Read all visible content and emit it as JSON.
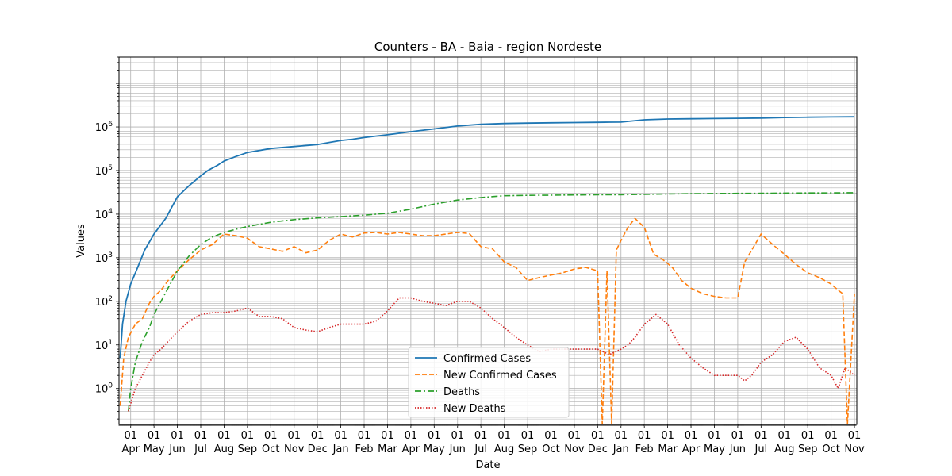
{
  "chart_data": {
    "type": "line",
    "title": "Counters - BA - Baia - region Nordeste",
    "xlabel": "Date",
    "ylabel": "Values",
    "yscale": "log",
    "ylim": [
      0.15,
      40000000
    ],
    "grid": true,
    "legend_position": "bottom-center",
    "x_ticks": [
      {
        "day": "01",
        "month": "Apr"
      },
      {
        "day": "01",
        "month": "May"
      },
      {
        "day": "01",
        "month": "Jun"
      },
      {
        "day": "01",
        "month": "Jul"
      },
      {
        "day": "01",
        "month": "Aug"
      },
      {
        "day": "01",
        "month": "Sep"
      },
      {
        "day": "01",
        "month": "Oct"
      },
      {
        "day": "01",
        "month": "Nov"
      },
      {
        "day": "01",
        "month": "Dec"
      },
      {
        "day": "01",
        "month": "Jan"
      },
      {
        "day": "01",
        "month": "Feb"
      },
      {
        "day": "01",
        "month": "Mar"
      },
      {
        "day": "01",
        "month": "Apr"
      },
      {
        "day": "01",
        "month": "May"
      },
      {
        "day": "01",
        "month": "Jun"
      },
      {
        "day": "01",
        "month": "Jul"
      },
      {
        "day": "01",
        "month": "Aug"
      },
      {
        "day": "01",
        "month": "Sep"
      },
      {
        "day": "01",
        "month": "Oct"
      },
      {
        "day": "01",
        "month": "Nov"
      },
      {
        "day": "01",
        "month": "Dec"
      },
      {
        "day": "01",
        "month": "Jan"
      },
      {
        "day": "01",
        "month": "Feb"
      },
      {
        "day": "01",
        "month": "Mar"
      },
      {
        "day": "01",
        "month": "Apr"
      },
      {
        "day": "01",
        "month": "May"
      },
      {
        "day": "01",
        "month": "Jun"
      },
      {
        "day": "01",
        "month": "Jul"
      },
      {
        "day": "01",
        "month": "Aug"
      },
      {
        "day": "01",
        "month": "Sep"
      },
      {
        "day": "01",
        "month": "Oct"
      },
      {
        "day": "01",
        "month": "Nov"
      }
    ],
    "y_ticks": [
      {
        "base": "10",
        "exp": "0",
        "value": 1
      },
      {
        "base": "10",
        "exp": "1",
        "value": 10
      },
      {
        "base": "10",
        "exp": "2",
        "value": 100
      },
      {
        "base": "10",
        "exp": "3",
        "value": 1000
      },
      {
        "base": "10",
        "exp": "4",
        "value": 10000
      },
      {
        "base": "10",
        "exp": "5",
        "value": 100000
      },
      {
        "base": "10",
        "exp": "6",
        "value": 1000000
      }
    ],
    "x_range_months": [
      -0.5,
      31.1
    ],
    "series": [
      {
        "name": "Confirmed Cases",
        "color": "#1f77b4",
        "style": "solid",
        "x": [
          -0.45,
          -0.35,
          -0.2,
          0,
          0.3,
          0.6,
          1,
          1.5,
          2,
          2.5,
          3,
          3.3,
          3.7,
          4,
          4.5,
          5,
          6,
          7,
          8,
          8.5,
          9,
          9.5,
          10,
          11,
          12,
          13,
          14,
          15,
          16,
          17,
          18,
          19,
          20,
          20.5,
          21,
          22,
          23,
          24,
          25,
          26,
          27,
          28,
          29,
          30,
          31
        ],
        "y": [
          5,
          30,
          100,
          250,
          600,
          1500,
          3500,
          8000,
          25000,
          45000,
          75000,
          100000,
          130000,
          165000,
          210000,
          260000,
          320000,
          355000,
          395000,
          440000,
          490000,
          520000,
          570000,
          660000,
          780000,
          900000,
          1050000,
          1150000,
          1200000,
          1225000,
          1245000,
          1260000,
          1275000,
          1290000,
          1295000,
          1460000,
          1520000,
          1540000,
          1560000,
          1580000,
          1600000,
          1650000,
          1675000,
          1695000,
          1710000
        ]
      },
      {
        "name": "New Confirmed Cases",
        "color": "#ff7f0e",
        "style": "dashed",
        "x": [
          -0.45,
          -0.3,
          -0.1,
          0.2,
          0.5,
          0.8,
          1,
          1.3,
          1.6,
          2,
          2.5,
          3,
          3.5,
          4,
          4.5,
          5,
          5.5,
          6,
          6.5,
          7,
          7.5,
          8,
          8.5,
          9,
          9.5,
          10,
          10.5,
          11,
          11.5,
          12,
          12.5,
          13,
          13.5,
          14,
          14.5,
          15,
          15.5,
          16,
          16.5,
          17,
          17.5,
          18,
          18.5,
          19,
          19.5,
          20,
          20.2,
          20.4,
          20.6,
          20.8,
          21,
          21.3,
          21.6,
          22,
          22.4,
          22.8,
          23.2,
          23.6,
          24,
          24.5,
          25,
          25.5,
          26,
          26.3,
          26.6,
          27,
          27.5,
          28,
          28.5,
          29,
          29.5,
          30,
          30.3,
          30.5,
          30.7,
          31
        ],
        "y": [
          0.4,
          5,
          15,
          30,
          40,
          90,
          130,
          180,
          300,
          500,
          900,
          1500,
          2000,
          3500,
          3200,
          2800,
          1800,
          1600,
          1400,
          1800,
          1300,
          1500,
          2500,
          3500,
          3000,
          3700,
          3800,
          3500,
          3800,
          3500,
          3200,
          3200,
          3500,
          3800,
          3600,
          1800,
          1600,
          800,
          600,
          300,
          350,
          400,
          450,
          550,
          600,
          500,
          0.15,
          500,
          0.15,
          1500,
          2500,
          5000,
          8000,
          5000,
          1200,
          900,
          600,
          300,
          200,
          150,
          130,
          120,
          120,
          800,
          1500,
          3500,
          2000,
          1200,
          700,
          450,
          350,
          250,
          180,
          150,
          0.15,
          150
        ]
      },
      {
        "name": "Deaths",
        "color": "#2ca02c",
        "style": "dashdot",
        "x": [
          -0.1,
          0,
          0.2,
          0.5,
          0.8,
          1,
          1.3,
          1.6,
          2,
          2.5,
          3,
          3.5,
          4,
          4.5,
          5,
          6,
          7,
          8,
          9,
          10,
          11,
          12,
          13,
          14,
          15,
          16,
          17,
          18,
          19,
          20,
          21,
          22,
          23,
          24,
          25,
          26,
          27,
          28,
          29,
          30,
          31
        ],
        "y": [
          0.3,
          1,
          4,
          12,
          25,
          50,
          100,
          200,
          500,
          1100,
          2000,
          3000,
          3800,
          4500,
          5200,
          6500,
          7500,
          8200,
          8800,
          9500,
          10500,
          13000,
          17000,
          21000,
          24000,
          26500,
          27000,
          27300,
          27600,
          27800,
          28000,
          28500,
          29000,
          29500,
          29800,
          30000,
          30200,
          30400,
          30600,
          30800,
          31000
        ]
      },
      {
        "name": "New Deaths",
        "color": "#d62728",
        "style": "dotted",
        "x": [
          -0.1,
          0.2,
          0.5,
          0.8,
          1,
          1.3,
          1.6,
          2,
          2.5,
          3,
          3.5,
          4,
          4.5,
          5,
          5.5,
          6,
          6.5,
          7,
          7.5,
          8,
          8.5,
          9,
          9.5,
          10,
          10.5,
          11,
          11.5,
          12,
          12.5,
          13,
          13.5,
          14,
          14.5,
          15,
          15.5,
          16,
          16.5,
          17,
          17.5,
          18,
          18.5,
          19,
          19.5,
          20,
          20.5,
          21,
          21.3,
          21.6,
          22,
          22.5,
          23,
          23.5,
          24,
          24.5,
          25,
          25.5,
          26,
          26.3,
          26.6,
          27,
          27.5,
          28,
          28.5,
          29,
          29.5,
          30,
          30.3,
          30.6,
          31
        ],
        "y": [
          0.3,
          1,
          2,
          4,
          6,
          8,
          12,
          20,
          35,
          50,
          55,
          55,
          60,
          70,
          45,
          45,
          40,
          25,
          22,
          20,
          25,
          30,
          30,
          30,
          35,
          60,
          120,
          120,
          100,
          90,
          80,
          100,
          100,
          70,
          40,
          25,
          15,
          10,
          7,
          8,
          8,
          8,
          8,
          8,
          6,
          8,
          10,
          15,
          30,
          50,
          30,
          10,
          5,
          3,
          2,
          2,
          2,
          1.5,
          2,
          4,
          6,
          12,
          15,
          8,
          3,
          2,
          1,
          3,
          2
        ]
      }
    ]
  }
}
